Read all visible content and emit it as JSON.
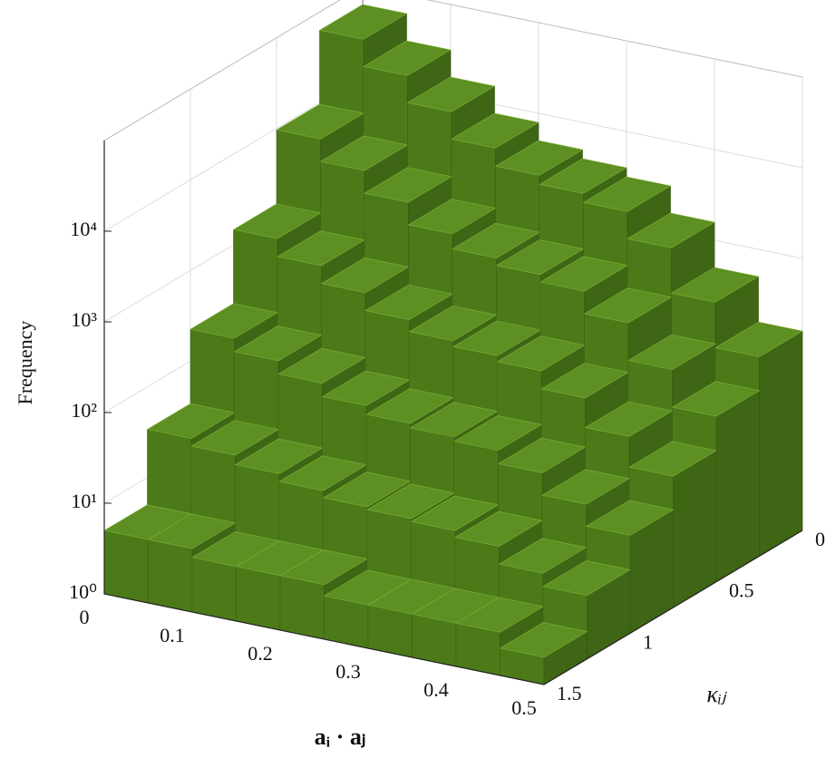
{
  "chart_data": {
    "type": "bar3d",
    "xlabel": "aᵢ · aⱼ",
    "ylabel": "κᵢⱼ",
    "zlabel": "Frequency",
    "x_bins": [
      0,
      0.05,
      0.1,
      0.15,
      0.2,
      0.25,
      0.3,
      0.35,
      0.4,
      0.45,
      0.5
    ],
    "y_bins": [
      0,
      0.25,
      0.5,
      0.75,
      1,
      1.25,
      1.5
    ],
    "values": [
      [
        63096,
        9638,
        1472,
        225,
        34,
        5
      ],
      [
        31623,
        5433,
        933,
        160,
        28,
        5
      ],
      [
        15849,
        3062,
        592,
        114,
        22,
        4
      ],
      [
        7943,
        1726,
        375,
        81,
        18,
        4
      ],
      [
        5012,
        1178,
        277,
        65,
        15,
        4
      ],
      [
        3981,
        973,
        238,
        58,
        14,
        3
      ],
      [
        3162,
        804,
        204,
        52,
        13,
        3
      ],
      [
        1585,
        453,
        129,
        37,
        11,
        3
      ],
      [
        501,
        174,
        61,
        21,
        7,
        3
      ],
      [
        158,
        67,
        28,
        12,
        5,
        2
      ]
    ],
    "color": "#5e8f22",
    "xlim": [
      0,
      0.5
    ],
    "ylim": [
      0,
      1.5
    ],
    "zlim": [
      1,
      100000
    ],
    "zscale": "log",
    "xticks": [
      0,
      0.1,
      0.2,
      0.3,
      0.4,
      0.5
    ],
    "yticks": [
      0,
      0.5,
      1,
      1.5
    ],
    "zticks": [
      {
        "value": 1,
        "label": "10⁰"
      },
      {
        "value": 10,
        "label": "10¹"
      },
      {
        "value": 100,
        "label": "10²"
      },
      {
        "value": 1000,
        "label": "10³"
      },
      {
        "value": 10000,
        "label": "10⁴"
      }
    ],
    "grid": true
  }
}
